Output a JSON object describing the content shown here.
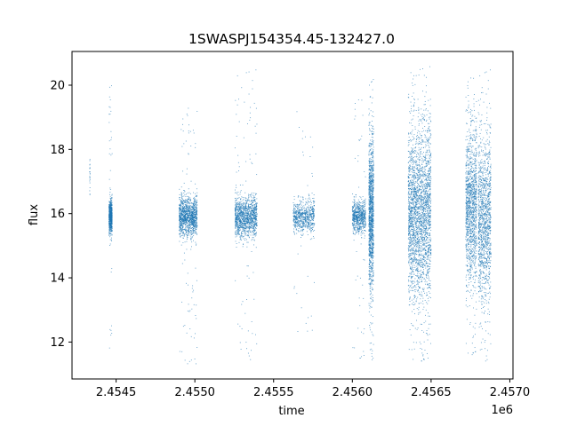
{
  "chart_data": {
    "type": "scatter",
    "title": "1SWASPJ154354.45-132427.0",
    "xlabel": "time",
    "ylabel": "flux",
    "x_offset_label": "1e6",
    "xlim": [
      2454220,
      2457020
    ],
    "ylim": [
      10.85,
      21.05
    ],
    "x_ticks": [
      2454500,
      2455000,
      2455500,
      2456000,
      2456500,
      2457000
    ],
    "x_tick_labels": [
      "2.4545",
      "2.4550",
      "2.4555",
      "2.4560",
      "2.4565",
      "2.4570"
    ],
    "y_ticks": [
      12,
      14,
      16,
      18,
      20
    ],
    "y_tick_labels": [
      "12",
      "14",
      "16",
      "18",
      "20"
    ],
    "grid": false,
    "legend": "none",
    "marker_color": "#1f77b4",
    "observing_seasons": [
      {
        "x_start": 2454332,
        "x_end": 2454335,
        "y_center": 17.2,
        "y_spread": 0.35,
        "y_min": 16.6,
        "y_max": 18.6,
        "density": "sparse"
      },
      {
        "x_start": 2454455,
        "x_end": 2454475,
        "y_center": 15.9,
        "y_spread": 0.25,
        "y_min": 11.5,
        "y_max": 20.2,
        "density": "medium"
      },
      {
        "x_start": 2454900,
        "x_end": 2455015,
        "y_center": 15.9,
        "y_spread": 0.3,
        "y_min": 11.3,
        "y_max": 19.3,
        "density": "dense"
      },
      {
        "x_start": 2455255,
        "x_end": 2455395,
        "y_center": 15.9,
        "y_spread": 0.3,
        "y_min": 11.3,
        "y_max": 20.5,
        "density": "dense"
      },
      {
        "x_start": 2455625,
        "x_end": 2455760,
        "y_center": 15.9,
        "y_spread": 0.25,
        "y_min": 12.2,
        "y_max": 19.6,
        "density": "medium"
      },
      {
        "x_start": 2456000,
        "x_end": 2456085,
        "y_center": 15.9,
        "y_spread": 0.25,
        "y_min": 11.4,
        "y_max": 19.8,
        "density": "medium"
      },
      {
        "x_start": 2456105,
        "x_end": 2456135,
        "y_center": 16.0,
        "y_spread": 1.1,
        "y_min": 11.3,
        "y_max": 20.2,
        "density": "dense"
      },
      {
        "x_start": 2456355,
        "x_end": 2456500,
        "y_center": 16.0,
        "y_spread": 1.3,
        "y_min": 11.3,
        "y_max": 20.6,
        "density": "very-dense"
      },
      {
        "x_start": 2456720,
        "x_end": 2456790,
        "y_center": 16.2,
        "y_spread": 1.2,
        "y_min": 11.5,
        "y_max": 20.5,
        "density": "dense"
      },
      {
        "x_start": 2456800,
        "x_end": 2456880,
        "y_center": 15.8,
        "y_spread": 1.2,
        "y_min": 11.3,
        "y_max": 20.5,
        "density": "dense"
      }
    ]
  }
}
